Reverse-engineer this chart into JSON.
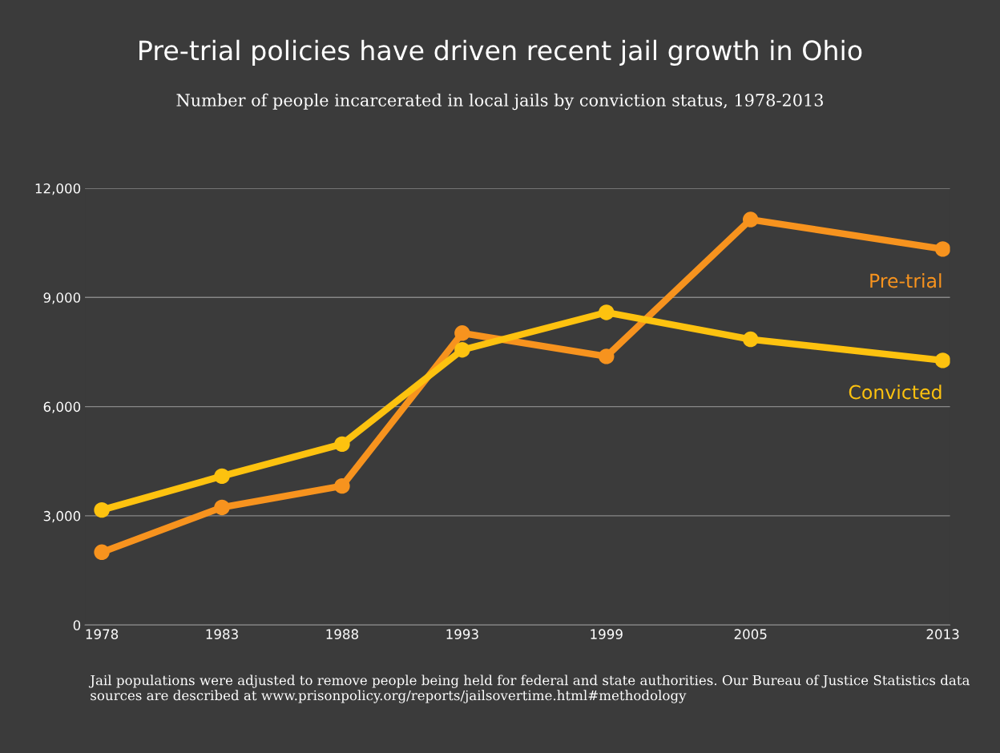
{
  "chart_data": {
    "type": "line",
    "title": "Pre-trial policies have driven recent jail growth in Ohio",
    "subtitle": "Number of people incarcerated in local jails by conviction status, 1978-2013",
    "x": [
      1978,
      1983,
      1988,
      1993,
      1999,
      2005,
      2013
    ],
    "series": [
      {
        "name": "Pre-trial",
        "color": "#f7931e",
        "values": [
          2000,
          3230,
          3820,
          8020,
          7380,
          11140,
          10330
        ]
      },
      {
        "name": "Convicted",
        "color": "#fdc20f",
        "values": [
          3160,
          4090,
          4970,
          7560,
          8590,
          7850,
          7270
        ]
      }
    ],
    "xlim": [
      1977.3,
      2013.3
    ],
    "xticks": [
      1978,
      1983,
      1988,
      1993,
      1999,
      2005,
      2013
    ],
    "ylim": [
      0,
      12000
    ],
    "yticks": [
      {
        "value": 0,
        "label": "0"
      },
      {
        "value": 3000,
        "label": "3,000"
      },
      {
        "value": 6000,
        "label": "6,000"
      },
      {
        "value": 9000,
        "label": "9,000"
      },
      {
        "value": 12000,
        "label": "12,000"
      }
    ],
    "grid": "y",
    "legend": false,
    "marker": "circle",
    "line_style": "solid",
    "annotations": [
      "Jail populations were adjusted to remove people being held for federal and state authorities. Our Bureau of Justice Statistics data sources are described at www.prisonpolicy.org/reports/jailsovertime.html#methodology"
    ]
  }
}
